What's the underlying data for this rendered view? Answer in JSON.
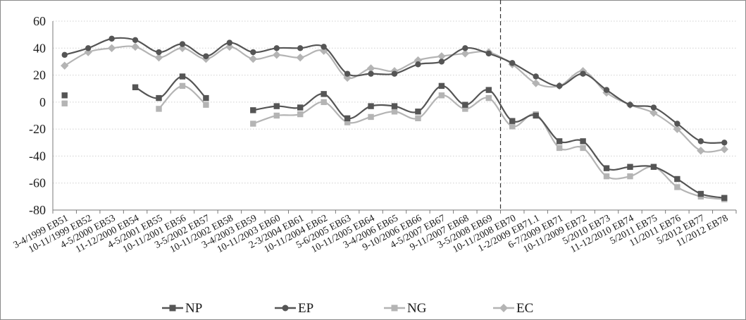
{
  "chart_data": {
    "type": "line",
    "title": "",
    "xlabel": "",
    "ylabel": "",
    "ylim": [
      -80,
      60
    ],
    "yticks": [
      60,
      40,
      20,
      0,
      -20,
      -40,
      -60,
      -80
    ],
    "grid": "horizontal-dotted",
    "legend_position": "bottom",
    "vertical_marker_after": "3-5/2008 EB69",
    "categories": [
      "3-4/1999 EB51",
      "10-11/1999 EB52",
      "4-5/2000 EB53",
      "11-12/2000 EB54",
      "4-5/2001 EB55",
      "10-11/2001 EB56",
      "3-5/2002 EB57",
      "10-11/2002 EB58",
      "3-4/2003 EB59",
      "10-11/2003 EB60",
      "2-3/2004 EB61",
      "10-11/2004 EB62",
      "5-6/2005 EB63",
      "10-11/2005 EB64",
      "3-4/2006 EB65",
      "9-10/2006 EB66",
      "4-5/2007 EB67",
      "9-11/2007 EB68",
      "3-5/2008 EB69",
      "10-11/2008 EB70",
      "1-2/2009 EB71.1",
      "6-7/2009 EB71",
      "10-11/2009 EB72",
      "5/2010 EB73",
      "11-12/2010 EB74",
      "5/2011 EB75",
      "11/2011 EB76",
      "5/2012 EB77",
      "11/2012 EB78"
    ],
    "series": [
      {
        "name": "NP",
        "color": "#555555",
        "marker": "square",
        "values": [
          5,
          null,
          null,
          11,
          3,
          19,
          3,
          null,
          -6,
          -3,
          -4,
          6,
          -12,
          -3,
          -3,
          -7,
          12,
          -2,
          9,
          -14,
          -10,
          -29,
          -29,
          -49,
          -48,
          -48,
          -57,
          -68,
          -71
        ]
      },
      {
        "name": "EP",
        "color": "#555555",
        "marker": "circle",
        "values": [
          35,
          40,
          47,
          46,
          37,
          43,
          34,
          44,
          37,
          40,
          40,
          41,
          21,
          21,
          21,
          28,
          30,
          40,
          36,
          29,
          19,
          12,
          21,
          9,
          -2,
          -4,
          -16,
          -29,
          -30
        ]
      },
      {
        "name": "NG",
        "color": "#b4b4b4",
        "marker": "square",
        "values": [
          -1,
          null,
          null,
          null,
          -5,
          12,
          -2,
          null,
          -16,
          -10,
          -9,
          0,
          -15,
          -11,
          -7,
          -12,
          5,
          -5,
          3,
          -18,
          -9,
          -34,
          -34,
          -55,
          -55,
          -48,
          -63,
          -70,
          -72
        ]
      },
      {
        "name": "EC",
        "color": "#b4b4b4",
        "marker": "diamond",
        "values": [
          27,
          37,
          40,
          41,
          33,
          40,
          32,
          41,
          32,
          35,
          33,
          38,
          18,
          25,
          23,
          31,
          34,
          36,
          37,
          28,
          14,
          12,
          23,
          7,
          -2,
          -8,
          -20,
          -36,
          -35
        ]
      }
    ]
  }
}
